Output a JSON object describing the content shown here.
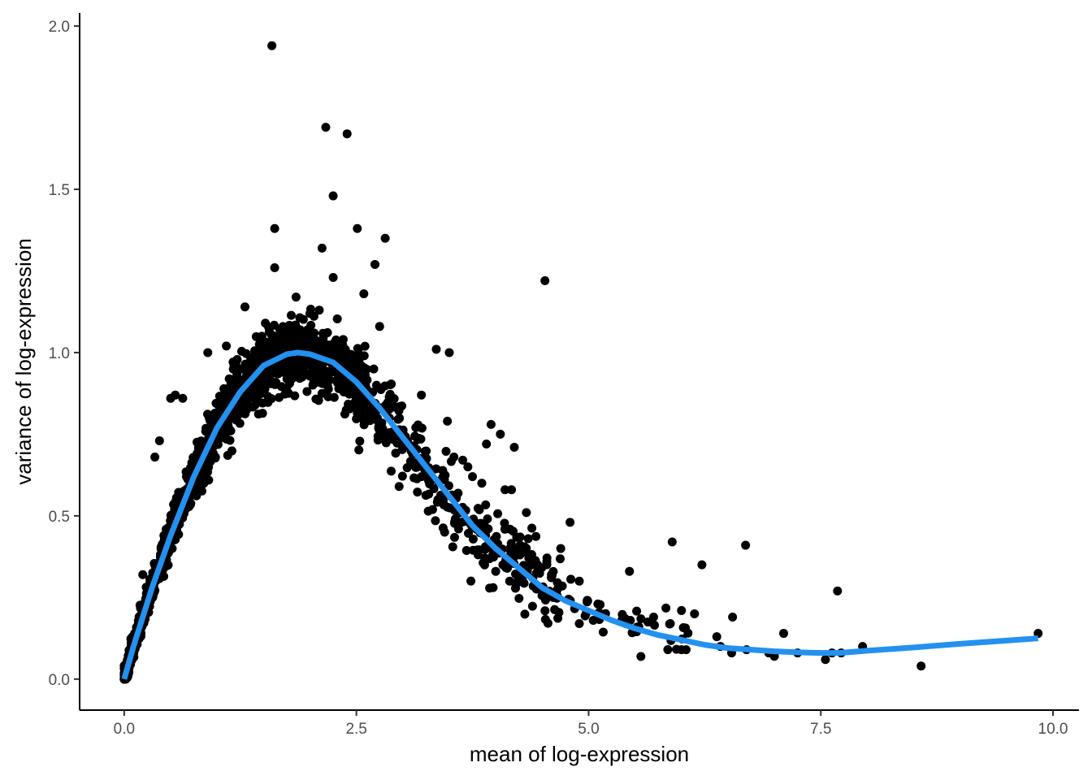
{
  "chart_data": {
    "type": "scatter",
    "title": "",
    "xlabel": "mean of log-expression",
    "ylabel": "variance of log-expression",
    "xlim": [
      -0.48,
      10.28
    ],
    "ylim": [
      -0.095,
      2.04
    ],
    "xticks": [
      0.0,
      2.5,
      5.0,
      7.5,
      10.0
    ],
    "xtick_labels": [
      "0.0",
      "2.5",
      "5.0",
      "7.5",
      "10.0"
    ],
    "yticks": [
      0.0,
      0.5,
      1.0,
      1.5,
      2.0
    ],
    "ytick_labels": [
      "0.0",
      "0.5",
      "1.0",
      "1.5",
      "2.0"
    ],
    "grid": false,
    "legend": "none",
    "point_color": "#000000",
    "trend_color": "#2391f0",
    "outliers": [
      [
        1.59,
        1.94
      ],
      [
        2.17,
        1.69
      ],
      [
        2.4,
        1.67
      ],
      [
        2.25,
        1.48
      ],
      [
        1.62,
        1.38
      ],
      [
        2.51,
        1.38
      ],
      [
        2.81,
        1.35
      ],
      [
        2.13,
        1.32
      ],
      [
        2.7,
        1.27
      ],
      [
        1.62,
        1.26
      ],
      [
        2.25,
        1.23
      ],
      [
        4.53,
        1.22
      ],
      [
        2.58,
        1.18
      ],
      [
        1.3,
        1.14
      ],
      [
        0.9,
        1.0
      ],
      [
        3.36,
        1.01
      ],
      [
        3.5,
        1.0
      ],
      [
        3.95,
        0.78
      ],
      [
        4.05,
        0.75
      ],
      [
        4.2,
        0.71
      ],
      [
        3.9,
        0.72
      ],
      [
        4.1,
        0.58
      ],
      [
        4.17,
        0.58
      ],
      [
        4.33,
        0.51
      ],
      [
        2.96,
        0.59
      ],
      [
        4.8,
        0.48
      ],
      [
        5.9,
        0.42
      ],
      [
        6.69,
        0.41
      ],
      [
        6.22,
        0.35
      ],
      [
        5.44,
        0.33
      ],
      [
        7.68,
        0.27
      ],
      [
        6.55,
        0.19
      ],
      [
        5.7,
        0.19
      ],
      [
        6.0,
        0.21
      ],
      [
        6.14,
        0.2
      ],
      [
        5.88,
        0.17
      ],
      [
        4.9,
        0.17
      ],
      [
        5.05,
        0.18
      ],
      [
        5.4,
        0.17
      ],
      [
        5.45,
        0.18
      ],
      [
        7.1,
        0.14
      ],
      [
        6.38,
        0.13
      ],
      [
        6.42,
        0.1
      ],
      [
        6.05,
        0.09
      ],
      [
        6.0,
        0.09
      ],
      [
        6.7,
        0.09
      ],
      [
        6.54,
        0.08
      ],
      [
        7.0,
        0.07
      ],
      [
        6.94,
        0.08
      ],
      [
        7.25,
        0.08
      ],
      [
        7.55,
        0.06
      ],
      [
        7.62,
        0.08
      ],
      [
        7.72,
        0.08
      ],
      [
        7.95,
        0.1
      ],
      [
        8.58,
        0.04
      ],
      [
        9.84,
        0.14
      ],
      [
        0.38,
        0.73
      ],
      [
        0.2,
        0.32
      ],
      [
        0.33,
        0.68
      ],
      [
        0.5,
        0.86
      ],
      [
        0.55,
        0.87
      ],
      [
        0.63,
        0.86
      ],
      [
        1.1,
        1.02
      ],
      [
        1.52,
        1.09
      ],
      [
        1.85,
        1.17
      ],
      [
        2.0,
        1.12
      ],
      [
        2.1,
        1.13
      ],
      [
        2.75,
        1.08
      ],
      [
        3.2,
        0.87
      ],
      [
        3.48,
        0.79
      ],
      [
        3.55,
        0.68
      ],
      [
        3.7,
        0.65
      ],
      [
        4.55,
        0.36
      ],
      [
        4.7,
        0.4
      ],
      [
        4.6,
        0.32
      ],
      [
        4.9,
        0.3
      ],
      [
        5.1,
        0.23
      ],
      [
        4.4,
        0.31
      ],
      [
        4.45,
        0.35
      ],
      [
        4.0,
        0.33
      ],
      [
        3.6,
        0.46
      ],
      [
        3.75,
        0.62
      ],
      [
        3.85,
        0.6
      ],
      [
        4.35,
        0.43
      ],
      [
        4.5,
        0.28
      ],
      [
        4.62,
        0.25
      ],
      [
        4.15,
        0.3
      ],
      [
        3.45,
        0.45
      ],
      [
        3.3,
        0.63
      ],
      [
        3.05,
        0.73
      ]
    ],
    "trend_points": [
      [
        0.0,
        0.0
      ],
      [
        0.1,
        0.1
      ],
      [
        0.2,
        0.19
      ],
      [
        0.3,
        0.28
      ],
      [
        0.5,
        0.44
      ],
      [
        0.75,
        0.62
      ],
      [
        1.0,
        0.77
      ],
      [
        1.25,
        0.88
      ],
      [
        1.5,
        0.96
      ],
      [
        1.75,
        0.995
      ],
      [
        1.87,
        1.0
      ],
      [
        2.0,
        0.995
      ],
      [
        2.25,
        0.97
      ],
      [
        2.5,
        0.91
      ],
      [
        2.75,
        0.83
      ],
      [
        3.0,
        0.74
      ],
      [
        3.25,
        0.65
      ],
      [
        3.5,
        0.56
      ],
      [
        3.75,
        0.47
      ],
      [
        4.0,
        0.4
      ],
      [
        4.25,
        0.34
      ],
      [
        4.5,
        0.28
      ],
      [
        4.75,
        0.24
      ],
      [
        5.0,
        0.21
      ],
      [
        5.25,
        0.18
      ],
      [
        5.5,
        0.155
      ],
      [
        5.75,
        0.135
      ],
      [
        6.0,
        0.12
      ],
      [
        6.25,
        0.105
      ],
      [
        6.5,
        0.095
      ],
      [
        6.75,
        0.09
      ],
      [
        7.0,
        0.085
      ],
      [
        7.25,
        0.082
      ],
      [
        7.5,
        0.08
      ],
      [
        7.7,
        0.08
      ],
      [
        8.0,
        0.087
      ],
      [
        8.5,
        0.097
      ],
      [
        9.0,
        0.108
      ],
      [
        9.5,
        0.118
      ],
      [
        9.84,
        0.125
      ]
    ]
  }
}
